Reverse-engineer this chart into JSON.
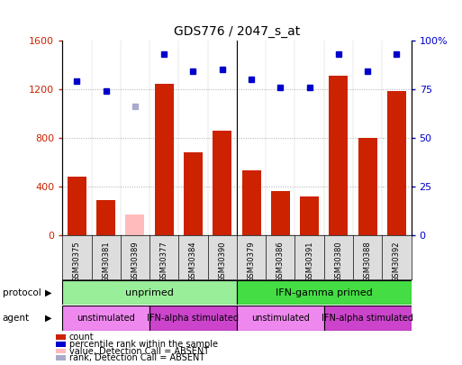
{
  "title": "GDS776 / 2047_s_at",
  "samples": [
    "GSM30375",
    "GSM30381",
    "GSM30389",
    "GSM30377",
    "GSM30384",
    "GSM30390",
    "GSM30379",
    "GSM30386",
    "GSM30391",
    "GSM30380",
    "GSM30388",
    "GSM30392"
  ],
  "count_values": [
    480,
    290,
    null,
    1240,
    680,
    860,
    530,
    360,
    320,
    1310,
    800,
    1185
  ],
  "count_absent": [
    null,
    null,
    175,
    null,
    null,
    null,
    null,
    null,
    null,
    null,
    null,
    null
  ],
  "rank_values": [
    79,
    74,
    null,
    93,
    84,
    85,
    80,
    76,
    76,
    93,
    84,
    93
  ],
  "rank_absent": [
    null,
    null,
    66,
    null,
    null,
    null,
    null,
    null,
    null,
    null,
    null,
    null
  ],
  "ylim_left": [
    0,
    1600
  ],
  "ylim_right": [
    0,
    100
  ],
  "yticks_left": [
    0,
    400,
    800,
    1200,
    1600
  ],
  "yticks_right": [
    0,
    25,
    50,
    75,
    100
  ],
  "bar_color": "#cc2200",
  "bar_absent_color": "#ffbbbb",
  "rank_color": "#0000cc",
  "rank_absent_color": "#aaaacc",
  "grid_color": "#aaaaaa",
  "protocol_groups": [
    {
      "label": "unprimed",
      "start": 0,
      "end": 6,
      "color": "#99ee99"
    },
    {
      "label": "IFN-gamma primed",
      "start": 6,
      "end": 12,
      "color": "#44dd44"
    }
  ],
  "agent_groups": [
    {
      "label": "unstimulated",
      "start": 0,
      "end": 3,
      "color": "#ee88ee"
    },
    {
      "label": "IFN-alpha stimulated",
      "start": 3,
      "end": 6,
      "color": "#cc44cc"
    },
    {
      "label": "unstimulated",
      "start": 6,
      "end": 9,
      "color": "#ee88ee"
    },
    {
      "label": "IFN-alpha stimulated",
      "start": 9,
      "end": 12,
      "color": "#cc44cc"
    }
  ],
  "protocol_label": "protocol",
  "agent_label": "agent",
  "legend_items": [
    {
      "label": "count",
      "color": "#cc2200"
    },
    {
      "label": "percentile rank within the sample",
      "color": "#0000cc"
    },
    {
      "label": "value, Detection Call = ABSENT",
      "color": "#ffbbbb"
    },
    {
      "label": "rank, Detection Call = ABSENT",
      "color": "#aaaacc"
    }
  ]
}
